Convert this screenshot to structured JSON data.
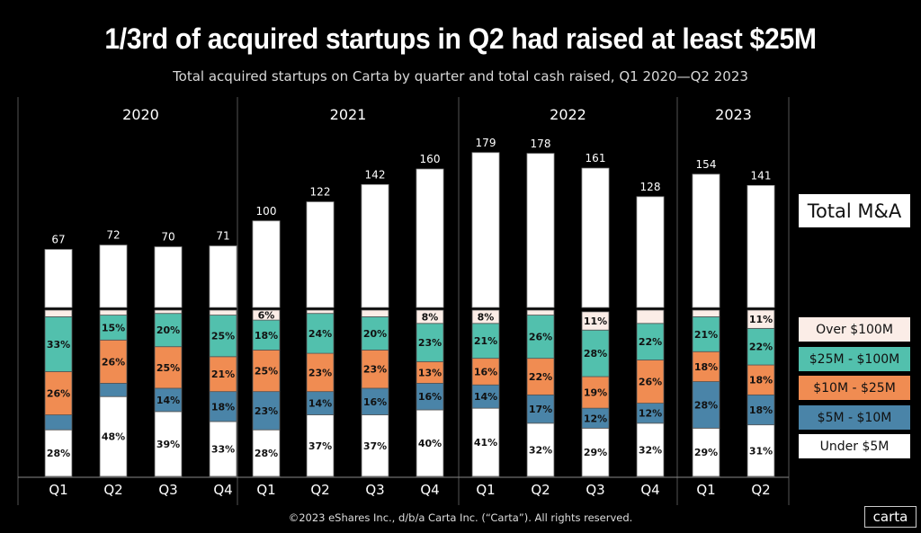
{
  "title": "1/3rd of acquired startups in Q2 had raised at least $25M",
  "subtitle": "Total acquired startups on Carta by quarter and total cash raised, Q1 2020—Q2 2023",
  "footer": "©2023 eShares Inc., d/b/a Carta Inc. (“Carta”). All rights reserved.",
  "logo_text": "carta",
  "chart_data": {
    "type": "bar",
    "title": "1/3rd of acquired startups in Q2 had raised at least $25M",
    "subtitle": "Total acquired startups on Carta by quarter and total cash raised, Q1 2020—Q2 2023",
    "years": [
      {
        "label": "2020",
        "quarters": 4
      },
      {
        "label": "2021",
        "quarters": 4
      },
      {
        "label": "2022",
        "quarters": 4
      },
      {
        "label": "2023",
        "quarters": 2
      }
    ],
    "categories": [
      "Q1",
      "Q2",
      "Q3",
      "Q4",
      "Q1",
      "Q2",
      "Q3",
      "Q4",
      "Q1",
      "Q2",
      "Q3",
      "Q4",
      "Q1",
      "Q2"
    ],
    "total_series": {
      "name": "Total M&A",
      "color": "#ffffff",
      "values": [
        67,
        72,
        70,
        71,
        100,
        122,
        142,
        160,
        179,
        178,
        161,
        128,
        154,
        141
      ]
    },
    "share_series": [
      {
        "name": "Under $5M",
        "color": "#ffffff",
        "values": [
          28,
          48,
          39,
          33,
          28,
          37,
          37,
          40,
          41,
          32,
          29,
          32,
          29,
          31
        ],
        "labels": [
          "28%",
          "48%",
          "39%",
          "33%",
          "28%",
          "37%",
          "37%",
          "40%",
          "41%",
          "32%",
          "29%",
          "32%",
          "29%",
          "31%"
        ]
      },
      {
        "name": "$5M - $10M",
        "color": "#4a84a8",
        "values": [
          9,
          8,
          14,
          18,
          23,
          14,
          16,
          16,
          14,
          17,
          12,
          12,
          28,
          18
        ],
        "labels": [
          null,
          null,
          "14%",
          "18%",
          "23%",
          "14%",
          "16%",
          "16%",
          "14%",
          "17%",
          "12%",
          "12%",
          "28%",
          "18%"
        ]
      },
      {
        "name": "$10M - $25M",
        "color": "#f08c52",
        "values": [
          26,
          26,
          25,
          21,
          25,
          23,
          23,
          13,
          16,
          22,
          19,
          26,
          18,
          18
        ],
        "labels": [
          "26%",
          "26%",
          "25%",
          "21%",
          "25%",
          "23%",
          "23%",
          "13%",
          "16%",
          "22%",
          "19%",
          "26%",
          "18%",
          "18%"
        ]
      },
      {
        "name": "$25M - $100M",
        "color": "#52c0ad",
        "values": [
          33,
          15,
          20,
          25,
          18,
          24,
          20,
          23,
          21,
          26,
          28,
          22,
          21,
          22
        ],
        "labels": [
          "33%",
          "15%",
          "20%",
          "25%",
          "18%",
          "24%",
          "20%",
          "23%",
          "21%",
          "26%",
          "28%",
          "22%",
          "21%",
          "22%"
        ]
      },
      {
        "name": "Over $100M",
        "color": "#fbede7",
        "values": [
          4,
          3,
          2,
          3,
          6,
          2,
          4,
          8,
          8,
          3,
          11,
          8,
          4,
          11
        ],
        "labels": [
          null,
          null,
          null,
          null,
          "6%",
          null,
          null,
          "8%",
          "8%",
          null,
          "11%",
          null,
          null,
          "11%"
        ]
      }
    ],
    "legend": [
      "Total M&A",
      "Over $100M",
      "$25M - $100M",
      "$10M - $25M",
      "$5M - $10M",
      "Under $5M"
    ],
    "legend_position": "right",
    "grid": false
  }
}
